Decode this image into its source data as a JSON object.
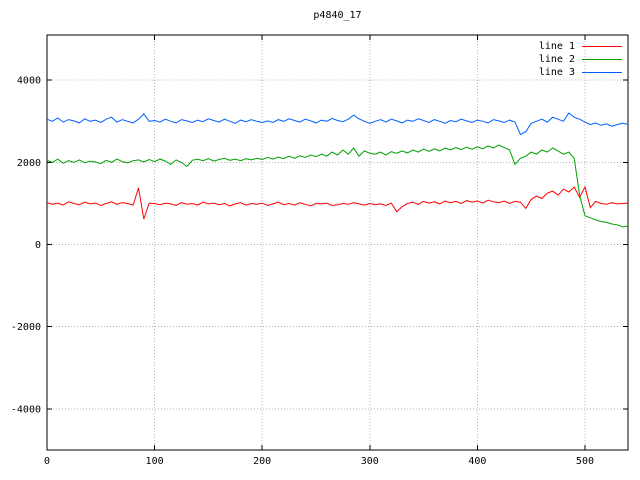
{
  "chart_data": {
    "type": "line",
    "title": "p4840_17",
    "xlabel": "",
    "ylabel": "",
    "xlim": [
      0,
      540
    ],
    "ylim": [
      -5000,
      5100
    ],
    "xticks": [
      0,
      100,
      200,
      300,
      400,
      500
    ],
    "yticks": [
      -4000,
      -2000,
      0,
      2000,
      4000
    ],
    "grid": true,
    "grid_style": "dotted",
    "legend_position": "top-right",
    "colors": {
      "background": "#ffffff",
      "border": "#000000",
      "grid": "#b4b4b4"
    },
    "x": [
      0,
      5,
      10,
      15,
      20,
      25,
      30,
      35,
      40,
      45,
      50,
      55,
      60,
      65,
      70,
      75,
      80,
      85,
      90,
      95,
      100,
      105,
      110,
      115,
      120,
      125,
      130,
      135,
      140,
      145,
      150,
      155,
      160,
      165,
      170,
      175,
      180,
      185,
      190,
      195,
      200,
      205,
      210,
      215,
      220,
      225,
      230,
      235,
      240,
      245,
      250,
      255,
      260,
      265,
      270,
      275,
      280,
      285,
      290,
      295,
      300,
      305,
      310,
      315,
      320,
      325,
      330,
      335,
      340,
      345,
      350,
      355,
      360,
      365,
      370,
      375,
      380,
      385,
      390,
      395,
      400,
      405,
      410,
      415,
      420,
      425,
      430,
      435,
      440,
      445,
      450,
      455,
      460,
      465,
      470,
      475,
      480,
      485,
      490,
      495,
      500,
      505,
      510,
      515,
      520,
      525,
      530,
      535,
      540
    ],
    "series": [
      {
        "name": "line 1",
        "color": "#ff0000",
        "values": [
          1020,
          980,
          1010,
          960,
          1040,
          1000,
          970,
          1030,
          990,
          1010,
          950,
          1000,
          1040,
          980,
          1020,
          1000,
          960,
          1380,
          620,
          1010,
          1000,
          970,
          1010,
          990,
          950,
          1020,
          980,
          1000,
          960,
          1030,
          990,
          1010,
          970,
          1000,
          940,
          990,
          1020,
          960,
          1000,
          980,
          1010,
          950,
          990,
          1030,
          970,
          1000,
          960,
          1020,
          980,
          940,
          1000,
          990,
          1010,
          950,
          970,
          1000,
          980,
          1020,
          990,
          960,
          1000,
          970,
          990,
          950,
          1010,
          800,
          920,
          1000,
          1030,
          980,
          1050,
          1010,
          1040,
          990,
          1060,
          1020,
          1050,
          1000,
          1070,
          1030,
          1060,
          1010,
          1080,
          1040,
          1020,
          1060,
          1000,
          1050,
          1030,
          880,
          1100,
          1180,
          1120,
          1250,
          1300,
          1200,
          1350,
          1280,
          1400,
          1150,
          1400,
          900,
          1050,
          1000,
          980,
          1020,
          990,
          1000,
          1010
        ]
      },
      {
        "name": "line 2",
        "color": "#00a000",
        "values": [
          2050,
          2000,
          2080,
          1980,
          2040,
          2000,
          2060,
          1990,
          2030,
          2010,
          1970,
          2050,
          2000,
          2080,
          2020,
          1990,
          2040,
          2060,
          2010,
          2070,
          2020,
          2080,
          2030,
          1950,
          2060,
          2000,
          1900,
          2050,
          2080,
          2040,
          2090,
          2030,
          2070,
          2100,
          2050,
          2080,
          2040,
          2090,
          2060,
          2100,
          2070,
          2120,
          2080,
          2130,
          2090,
          2150,
          2100,
          2160,
          2120,
          2180,
          2140,
          2200,
          2150,
          2250,
          2180,
          2300,
          2200,
          2350,
          2150,
          2280,
          2220,
          2200,
          2250,
          2180,
          2260,
          2220,
          2280,
          2230,
          2300,
          2250,
          2320,
          2270,
          2330,
          2280,
          2350,
          2300,
          2360,
          2310,
          2370,
          2320,
          2380,
          2330,
          2400,
          2350,
          2420,
          2360,
          2300,
          1950,
          2100,
          2150,
          2250,
          2200,
          2300,
          2250,
          2350,
          2280,
          2200,
          2250,
          2100,
          1200,
          700,
          650,
          600,
          560,
          540,
          500,
          480,
          430,
          450
        ]
      },
      {
        "name": "line 3",
        "color": "#0060ff",
        "values": [
          3050,
          3000,
          3080,
          2980,
          3040,
          3010,
          2960,
          3060,
          3000,
          3030,
          2970,
          3050,
          3100,
          2980,
          3040,
          3000,
          2960,
          3050,
          3180,
          3000,
          3020,
          2980,
          3050,
          3000,
          2960,
          3040,
          3010,
          2970,
          3030,
          2990,
          3060,
          3020,
          2980,
          3050,
          3000,
          2950,
          3030,
          2990,
          3040,
          3000,
          2970,
          3010,
          2970,
          3040,
          3000,
          3060,
          3020,
          2980,
          3050,
          3010,
          2960,
          3030,
          3000,
          3070,
          3020,
          2990,
          3050,
          3150,
          3060,
          3000,
          2950,
          3000,
          3040,
          2980,
          3050,
          3010,
          2960,
          3030,
          3000,
          3060,
          3020,
          2970,
          3040,
          3000,
          2950,
          3020,
          2990,
          3050,
          3010,
          2970,
          3030,
          3000,
          2960,
          3040,
          3010,
          2970,
          3030,
          2980,
          2680,
          2750,
          2950,
          3000,
          3050,
          2980,
          3100,
          3050,
          3000,
          3200,
          3100,
          3050,
          2980,
          2920,
          2960,
          2900,
          2940,
          2880,
          2920,
          2950,
          2930
        ]
      }
    ]
  }
}
